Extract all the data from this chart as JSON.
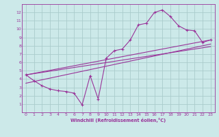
{
  "xlabel": "Windchill (Refroidissement éolien,°C)",
  "bg_color": "#cce9e9",
  "grid_color": "#aacccc",
  "line_color": "#993399",
  "xlim": [
    -0.5,
    23.5
  ],
  "ylim": [
    0,
    13
  ],
  "xticks": [
    0,
    1,
    2,
    3,
    4,
    5,
    6,
    7,
    8,
    9,
    10,
    11,
    12,
    13,
    14,
    15,
    16,
    17,
    18,
    19,
    20,
    21,
    22,
    23
  ],
  "yticks": [
    1,
    2,
    3,
    4,
    5,
    6,
    7,
    8,
    9,
    10,
    11,
    12
  ],
  "line1_x": [
    0,
    1,
    2,
    3,
    4,
    5,
    6,
    7,
    8,
    9,
    10,
    11,
    12,
    13,
    14,
    15,
    16,
    17,
    18,
    19,
    20,
    21,
    22,
    23
  ],
  "line1_y": [
    4.5,
    3.8,
    3.2,
    2.8,
    2.6,
    2.5,
    2.3,
    0.9,
    4.4,
    1.6,
    6.5,
    7.4,
    7.6,
    8.7,
    10.5,
    10.7,
    12.0,
    12.3,
    11.5,
    10.4,
    9.9,
    9.8,
    8.4,
    8.7
  ],
  "line2_x": [
    0,
    23
  ],
  "line2_y": [
    4.5,
    8.7
  ],
  "line3_x": [
    0,
    23
  ],
  "line3_y": [
    3.5,
    8.2
  ],
  "line4_x": [
    0,
    23
  ],
  "line4_y": [
    4.5,
    7.9
  ]
}
